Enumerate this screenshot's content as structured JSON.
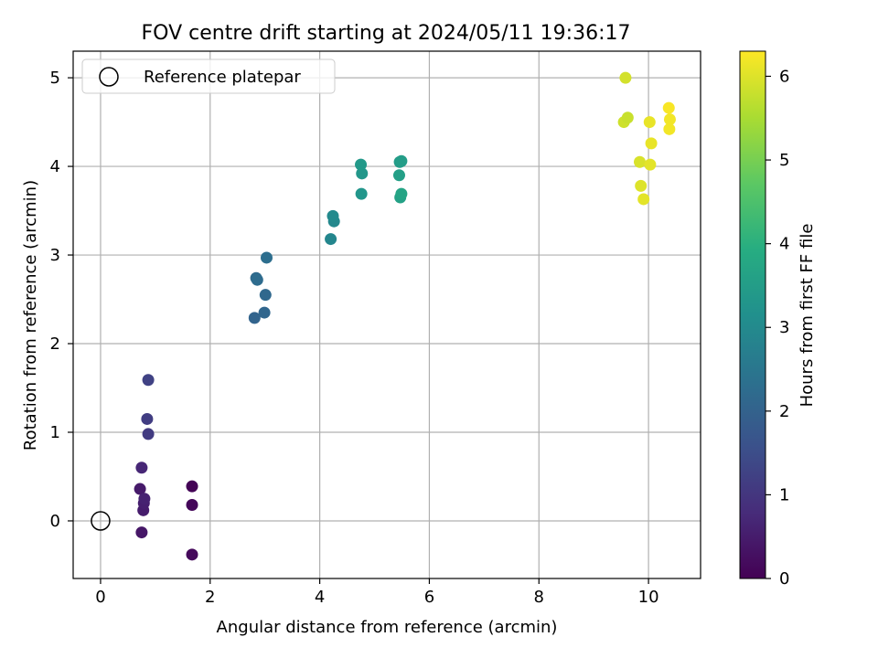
{
  "chart_data": {
    "type": "scatter",
    "title": "FOV centre drift starting at 2024/05/11 19:36:17",
    "xlabel": "Angular distance from reference (arcmin)",
    "ylabel": "Rotation from reference (arcmin)",
    "colorbar_label": "Hours from first FF file",
    "xlim": [
      -0.5,
      10.95
    ],
    "ylim": [
      -0.65,
      5.3
    ],
    "xticks": [
      0,
      2,
      4,
      6,
      8,
      10
    ],
    "yticks": [
      0,
      1,
      2,
      3,
      4,
      5
    ],
    "colorbar_range": [
      0,
      6.3
    ],
    "colorbar_ticks": [
      0,
      1,
      2,
      3,
      4,
      5,
      6
    ],
    "colormap": "viridis",
    "grid": true,
    "legend": {
      "location": "upper-left",
      "entries": [
        "Reference platepar"
      ]
    },
    "reference": {
      "x": 0,
      "y": 0
    },
    "points": [
      {
        "x": 1.67,
        "y": 0.39,
        "c": 0.05
      },
      {
        "x": 1.67,
        "y": 0.18,
        "c": 0.1
      },
      {
        "x": 1.67,
        "y": -0.38,
        "c": 0.15
      },
      {
        "x": 0.75,
        "y": -0.13,
        "c": 0.4
      },
      {
        "x": 0.72,
        "y": 0.36,
        "c": 0.45
      },
      {
        "x": 0.78,
        "y": 0.12,
        "c": 0.5
      },
      {
        "x": 0.79,
        "y": 0.2,
        "c": 0.55
      },
      {
        "x": 0.8,
        "y": 0.25,
        "c": 0.6
      },
      {
        "x": 0.75,
        "y": 0.6,
        "c": 0.7
      },
      {
        "x": 0.87,
        "y": 0.98,
        "c": 1.1
      },
      {
        "x": 0.85,
        "y": 1.15,
        "c": 1.15
      },
      {
        "x": 0.87,
        "y": 1.59,
        "c": 1.25
      },
      {
        "x": 2.81,
        "y": 2.29,
        "c": 2.05
      },
      {
        "x": 2.99,
        "y": 2.35,
        "c": 2.1
      },
      {
        "x": 3.01,
        "y": 2.55,
        "c": 2.15
      },
      {
        "x": 2.84,
        "y": 2.74,
        "c": 2.2
      },
      {
        "x": 2.86,
        "y": 2.72,
        "c": 2.25
      },
      {
        "x": 3.03,
        "y": 2.97,
        "c": 2.3
      },
      {
        "x": 4.2,
        "y": 3.18,
        "c": 2.9
      },
      {
        "x": 4.26,
        "y": 3.38,
        "c": 2.95
      },
      {
        "x": 4.24,
        "y": 3.44,
        "c": 3.0
      },
      {
        "x": 4.76,
        "y": 3.69,
        "c": 3.3
      },
      {
        "x": 4.77,
        "y": 3.92,
        "c": 3.35
      },
      {
        "x": 4.75,
        "y": 4.02,
        "c": 3.4
      },
      {
        "x": 5.45,
        "y": 3.9,
        "c": 3.55
      },
      {
        "x": 5.47,
        "y": 3.65,
        "c": 3.6
      },
      {
        "x": 5.49,
        "y": 3.69,
        "c": 3.7
      },
      {
        "x": 5.46,
        "y": 4.05,
        "c": 3.45
      },
      {
        "x": 5.49,
        "y": 4.06,
        "c": 3.5
      },
      {
        "x": 9.55,
        "y": 4.5,
        "c": 5.85
      },
      {
        "x": 9.62,
        "y": 4.55,
        "c": 5.8
      },
      {
        "x": 9.58,
        "y": 5.0,
        "c": 5.9
      },
      {
        "x": 9.84,
        "y": 4.05,
        "c": 5.95
      },
      {
        "x": 9.86,
        "y": 3.78,
        "c": 6.0
      },
      {
        "x": 9.91,
        "y": 3.63,
        "c": 6.05
      },
      {
        "x": 10.03,
        "y": 4.02,
        "c": 6.05
      },
      {
        "x": 10.05,
        "y": 4.26,
        "c": 6.1
      },
      {
        "x": 10.02,
        "y": 4.5,
        "c": 6.1
      },
      {
        "x": 10.38,
        "y": 4.42,
        "c": 6.2
      },
      {
        "x": 10.39,
        "y": 4.53,
        "c": 6.2
      },
      {
        "x": 10.37,
        "y": 4.66,
        "c": 6.25
      }
    ]
  }
}
